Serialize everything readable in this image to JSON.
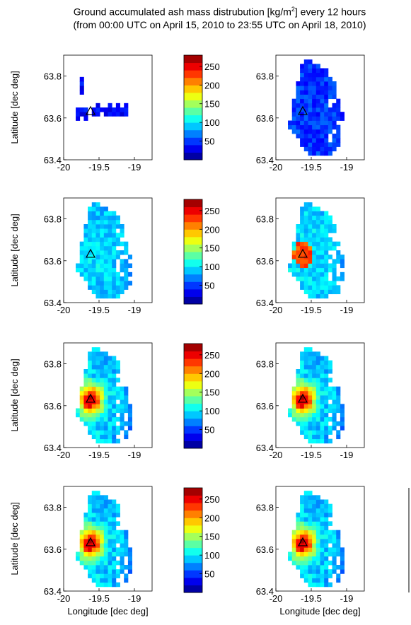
{
  "figure": {
    "title_line1": "Ground accumulated ash mass distrubution [kg/m",
    "title_sup": "2",
    "title_line1_end": "] every 12 hours",
    "title_line2": "(from 00:00 UTC on April 15, 2010 to 23:55 UTC on April 18, 2010)"
  },
  "chart_data": {
    "type": "heatmap",
    "xlabel": "Longitude [dec deg]",
    "ylabel": "Latitude [dec deg]",
    "xlim": [
      -20,
      -18.75
    ],
    "ylim": [
      63.4,
      63.9
    ],
    "xticks": [
      "-20",
      "-19.5",
      "-19"
    ],
    "yticks": [
      "63.4",
      "63.6",
      "63.8"
    ],
    "colorbar": {
      "ticks": [
        "250",
        "200",
        "150",
        "100",
        "50"
      ],
      "tick_values": [
        250,
        200,
        150,
        100,
        50
      ],
      "range": [
        0,
        280
      ]
    },
    "vent_marker": {
      "lon": -19.62,
      "lat": 63.63,
      "symbol": "triangle"
    },
    "panels": [
      {
        "period": 1,
        "summary": "sparse low deposits east of vent"
      },
      {
        "period": 2,
        "summary": "low-moderate deposits, cyan-blue"
      },
      {
        "period": 3,
        "summary": "widespread moderate deposits"
      },
      {
        "period": 4,
        "summary": "moderate with small high patch NE of vent"
      },
      {
        "period": 5,
        "summary": "high deposits at vent"
      },
      {
        "period": 6,
        "summary": "high deposits at vent"
      },
      {
        "period": 7,
        "summary": "high deposits at vent"
      },
      {
        "period": 8,
        "summary": "high deposits at vent"
      }
    ]
  }
}
